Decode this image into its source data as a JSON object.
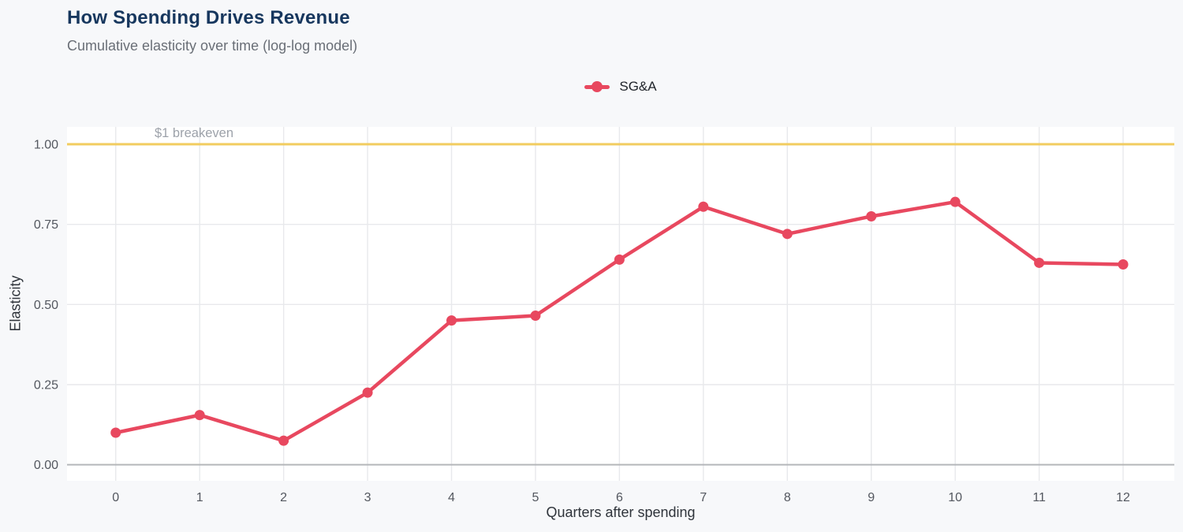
{
  "header": {
    "title": "How Spending Drives Revenue",
    "subtitle": "Cumulative elasticity over time (log-log model)",
    "title_color": "#17375E"
  },
  "legend": {
    "position": "top-center",
    "items": [
      {
        "label": "SG&A",
        "color": "#E8485F"
      }
    ]
  },
  "chart_data": {
    "type": "line",
    "title": "How Spending Drives Revenue",
    "subtitle": "Cumulative elasticity over time (log-log model)",
    "xlabel": "Quarters after spending",
    "ylabel": "Elasticity",
    "x": [
      0,
      1,
      2,
      3,
      4,
      5,
      6,
      7,
      8,
      9,
      10,
      11,
      12
    ],
    "series": [
      {
        "name": "SG&A",
        "color": "#E8485F",
        "marker": "circle",
        "values": [
          0.1,
          0.155,
          0.075,
          0.225,
          0.45,
          0.465,
          0.64,
          0.805,
          0.72,
          0.775,
          0.82,
          0.63,
          0.625
        ]
      }
    ],
    "xticks": [
      0,
      1,
      2,
      3,
      4,
      5,
      6,
      7,
      8,
      9,
      10,
      11,
      12
    ],
    "xtick_labels": [
      "0",
      "1",
      "2",
      "3",
      "4",
      "5",
      "6",
      "7",
      "8",
      "9",
      "10",
      "11",
      "12"
    ],
    "yticks": [
      0,
      0.25,
      0.5,
      0.75,
      1.0
    ],
    "ytick_labels": [
      "0.00",
      "0.25",
      "0.50",
      "0.75",
      "1.00"
    ],
    "xlim": [
      -0.58,
      12.61
    ],
    "ylim": [
      -0.05,
      1.054
    ],
    "grid": true,
    "legend_position": "top-center",
    "reference_line": {
      "y": 1.0,
      "label": "$1 breakeven",
      "color": "#F2CC5F",
      "label_color": "#9DA2AA"
    },
    "colors": {
      "page_bg": "#F7F8FA",
      "plot_bg": "#FFFFFF",
      "grid": "#E8E9EC",
      "zero_line": "#B4B6BA",
      "tick_label": "#53575F",
      "axis_title": "#2F343B"
    }
  }
}
